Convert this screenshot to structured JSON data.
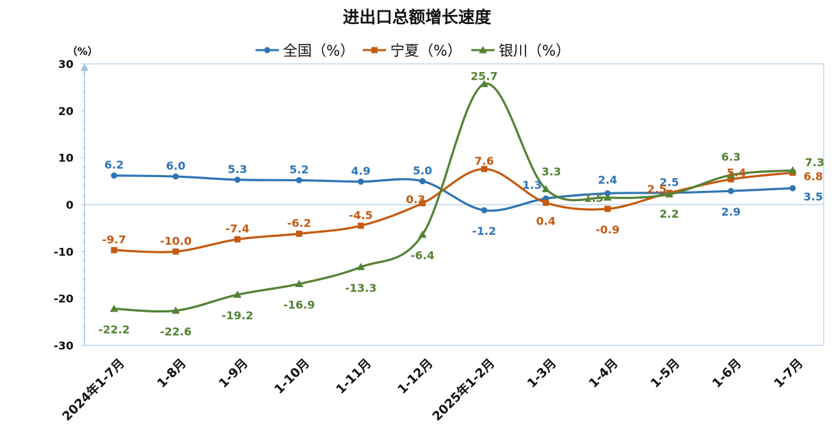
{
  "chart_data": {
    "type": "line",
    "title": "进出口总额增长速度",
    "ylabel": "（%）",
    "xlabel": "",
    "ylim": [
      -30,
      30
    ],
    "yticks": [
      30,
      20,
      10,
      0,
      -10,
      -20,
      -30
    ],
    "legend_position": "top",
    "smooth": true,
    "categories": [
      "2024年1-7月",
      "1-8月",
      "1-9月",
      "1-10月",
      "1-11月",
      "1-12月",
      "2025年1-2月",
      "1-3月",
      "1-4月",
      "1-5月",
      "1-6月",
      "1-7月"
    ],
    "series": [
      {
        "name": "全国（%）",
        "color": "#2E75B6",
        "marker": "circle",
        "values": [
          6.2,
          6.0,
          5.3,
          5.2,
          4.9,
          5.0,
          -1.2,
          1.3,
          2.4,
          2.5,
          2.9,
          3.5
        ]
      },
      {
        "name": "宁夏（%）",
        "color": "#C55A11",
        "marker": "square",
        "values": [
          -9.7,
          -10.0,
          -7.4,
          -6.2,
          -4.5,
          0.3,
          7.6,
          0.4,
          -0.9,
          2.5,
          5.4,
          6.8
        ]
      },
      {
        "name": "银川（%）",
        "color": "#548235",
        "marker": "triangle",
        "values": [
          -22.2,
          -22.6,
          -19.2,
          -16.9,
          -13.3,
          -6.4,
          25.7,
          3.3,
          1.5,
          2.2,
          6.3,
          7.3
        ]
      }
    ]
  }
}
